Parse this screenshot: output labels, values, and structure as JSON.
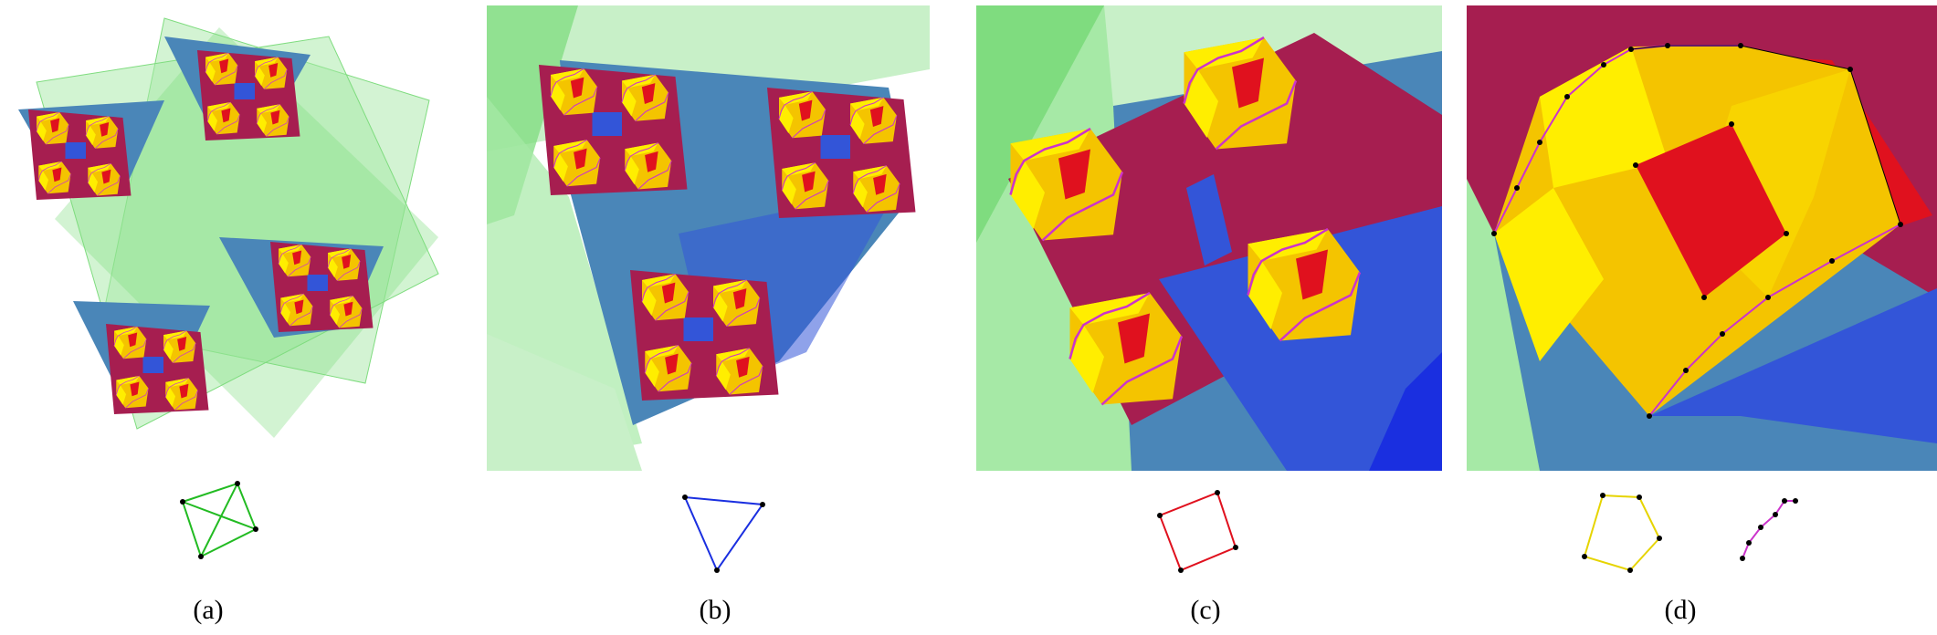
{
  "figure": {
    "captions": [
      "(a)",
      "(b)",
      "(c)",
      "(d)"
    ]
  },
  "colors": {
    "green": "#7fdc7f",
    "light_green": "#c8f0c8",
    "blue": "#3355d8",
    "steel_blue": "#4a86b8",
    "crimson": "#a61e50",
    "red": "#e0111e",
    "gold": "#f4c400",
    "yellow": "#ffee00",
    "magenta": "#cc33cc"
  },
  "icons": {
    "a": "green-quadrilateral-with-diagonals-icon",
    "b": "blue-triangle-icon",
    "c": "red-quadrilateral-icon",
    "d1": "yellow-pentagon-icon",
    "d2": "magenta-curve-polyline-icon"
  }
}
